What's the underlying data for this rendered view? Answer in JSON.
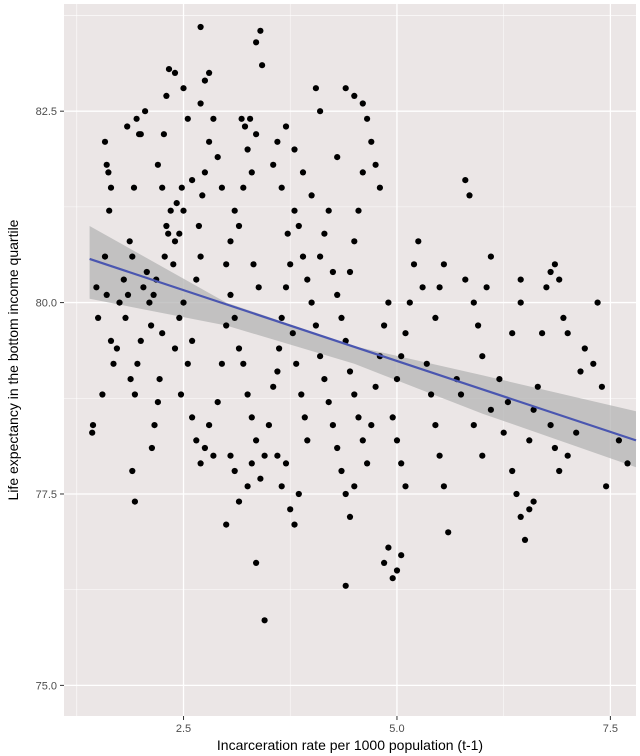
{
  "chart_data": {
    "type": "scatter",
    "title": "",
    "xlabel": "Incarceration rate per 1000 population (t-1)",
    "ylabel": "Life expectancy in the bottom income quartile",
    "xlim": [
      1.1,
      7.8
    ],
    "ylim": [
      74.6,
      83.9
    ],
    "x_ticks": [
      2.5,
      5.0,
      7.5
    ],
    "x_tick_labels": [
      "2.5",
      "5.0",
      "7.5"
    ],
    "y_ticks": [
      75.0,
      77.5,
      80.0,
      82.5
    ],
    "y_tick_labels": [
      "75.0",
      "77.5",
      "80.0",
      "82.5"
    ],
    "grid": true,
    "background": "#ebe6e6",
    "gridline_color": "#ffffff",
    "point_color": "#000000",
    "fit_line_color": "#4a56b0",
    "confidence_band_color": "#b4b4b4",
    "fit_line": {
      "x": [
        1.4,
        7.8
      ],
      "y": [
        80.57,
        78.2
      ]
    },
    "confidence_band": {
      "x": [
        1.4,
        3.0,
        4.5,
        6.0,
        7.8
      ],
      "lower": [
        80.05,
        79.7,
        79.2,
        78.55,
        77.85
      ],
      "upper": [
        81.0,
        80.0,
        79.43,
        79.05,
        78.58
      ]
    },
    "points": [
      [
        1.43,
        78.3
      ],
      [
        1.44,
        78.4
      ],
      [
        1.55,
        78.8
      ],
      [
        1.5,
        79.8
      ],
      [
        1.48,
        80.2
      ],
      [
        1.6,
        80.1
      ],
      [
        1.58,
        80.6
      ],
      [
        1.65,
        79.5
      ],
      [
        1.68,
        79.2
      ],
      [
        1.72,
        79.4
      ],
      [
        1.75,
        80.0
      ],
      [
        1.63,
        81.2
      ],
      [
        1.65,
        81.5
      ],
      [
        1.62,
        81.7
      ],
      [
        1.6,
        81.8
      ],
      [
        1.58,
        82.1
      ],
      [
        1.8,
        80.3
      ],
      [
        1.82,
        79.8
      ],
      [
        1.85,
        80.1
      ],
      [
        1.88,
        79.0
      ],
      [
        1.9,
        80.6
      ],
      [
        1.87,
        80.8
      ],
      [
        1.84,
        82.3
      ],
      [
        1.92,
        81.5
      ],
      [
        1.95,
        82.4
      ],
      [
        1.98,
        82.2
      ],
      [
        2.05,
        82.5
      ],
      [
        2.0,
        82.2
      ],
      [
        1.93,
        78.8
      ],
      [
        1.9,
        77.8
      ],
      [
        1.93,
        77.4
      ],
      [
        1.96,
        79.2
      ],
      [
        2.0,
        79.5
      ],
      [
        2.03,
        80.2
      ],
      [
        2.07,
        80.4
      ],
      [
        2.1,
        80.0
      ],
      [
        2.12,
        79.7
      ],
      [
        2.15,
        80.1
      ],
      [
        2.18,
        80.3
      ],
      [
        2.2,
        78.7
      ],
      [
        2.16,
        78.4
      ],
      [
        2.13,
        78.1
      ],
      [
        2.22,
        79.0
      ],
      [
        2.25,
        79.6
      ],
      [
        2.28,
        80.6
      ],
      [
        2.3,
        81.0
      ],
      [
        2.32,
        80.9
      ],
      [
        2.35,
        81.2
      ],
      [
        2.4,
        80.8
      ],
      [
        2.38,
        80.5
      ],
      [
        2.45,
        80.9
      ],
      [
        2.42,
        81.3
      ],
      [
        2.48,
        81.5
      ],
      [
        2.5,
        81.2
      ],
      [
        2.27,
        82.2
      ],
      [
        2.3,
        82.7
      ],
      [
        2.2,
        81.8
      ],
      [
        2.25,
        81.5
      ],
      [
        2.33,
        83.05
      ],
      [
        2.4,
        83.0
      ],
      [
        2.5,
        82.8
      ],
      [
        2.55,
        82.4
      ],
      [
        2.6,
        81.6
      ],
      [
        2.5,
        80.0
      ],
      [
        2.45,
        79.8
      ],
      [
        2.4,
        79.4
      ],
      [
        2.47,
        78.8
      ],
      [
        2.55,
        79.2
      ],
      [
        2.6,
        79.5
      ],
      [
        2.65,
        80.3
      ],
      [
        2.7,
        80.6
      ],
      [
        2.68,
        81.0
      ],
      [
        2.72,
        81.4
      ],
      [
        2.75,
        81.7
      ],
      [
        2.8,
        82.1
      ],
      [
        2.7,
        82.6
      ],
      [
        2.75,
        82.9
      ],
      [
        2.8,
        83.0
      ],
      [
        2.7,
        83.6
      ],
      [
        2.85,
        82.4
      ],
      [
        2.9,
        81.9
      ],
      [
        2.95,
        81.5
      ],
      [
        2.6,
        78.5
      ],
      [
        2.65,
        78.2
      ],
      [
        2.7,
        77.9
      ],
      [
        2.75,
        78.1
      ],
      [
        2.8,
        78.4
      ],
      [
        2.85,
        78.0
      ],
      [
        2.9,
        78.7
      ],
      [
        2.95,
        79.2
      ],
      [
        3.0,
        79.7
      ],
      [
        3.05,
        80.1
      ],
      [
        3.0,
        80.5
      ],
      [
        3.05,
        80.8
      ],
      [
        3.1,
        81.2
      ],
      [
        3.15,
        81.0
      ],
      [
        3.2,
        81.5
      ],
      [
        3.25,
        82.0
      ],
      [
        3.18,
        82.4
      ],
      [
        3.22,
        82.3
      ],
      [
        3.28,
        82.4
      ],
      [
        3.35,
        83.4
      ],
      [
        3.4,
        83.55
      ],
      [
        3.42,
        83.1
      ],
      [
        3.35,
        82.2
      ],
      [
        3.3,
        81.7
      ],
      [
        3.32,
        80.5
      ],
      [
        3.38,
        80.2
      ],
      [
        3.1,
        79.8
      ],
      [
        3.15,
        79.4
      ],
      [
        3.2,
        79.2
      ],
      [
        3.25,
        78.8
      ],
      [
        3.3,
        78.5
      ],
      [
        3.35,
        78.2
      ],
      [
        3.05,
        78.0
      ],
      [
        3.1,
        77.8
      ],
      [
        3.0,
        77.1
      ],
      [
        3.15,
        77.4
      ],
      [
        3.25,
        77.6
      ],
      [
        3.3,
        77.9
      ],
      [
        3.35,
        76.6
      ],
      [
        3.45,
        75.85
      ],
      [
        3.4,
        77.7
      ],
      [
        3.45,
        78.0
      ],
      [
        3.5,
        78.4
      ],
      [
        3.55,
        78.9
      ],
      [
        3.6,
        79.1
      ],
      [
        3.62,
        79.4
      ],
      [
        3.65,
        79.8
      ],
      [
        3.7,
        80.2
      ],
      [
        3.75,
        80.5
      ],
      [
        3.72,
        80.9
      ],
      [
        3.8,
        81.2
      ],
      [
        3.85,
        81.0
      ],
      [
        3.9,
        80.6
      ],
      [
        3.95,
        80.3
      ],
      [
        3.78,
        79.6
      ],
      [
        3.82,
        79.2
      ],
      [
        3.88,
        78.8
      ],
      [
        3.92,
        78.5
      ],
      [
        3.95,
        78.2
      ],
      [
        3.6,
        78.0
      ],
      [
        3.65,
        77.6
      ],
      [
        3.7,
        77.9
      ],
      [
        3.75,
        77.3
      ],
      [
        3.8,
        77.1
      ],
      [
        3.85,
        77.5
      ],
      [
        3.55,
        81.8
      ],
      [
        3.6,
        82.1
      ],
      [
        3.65,
        81.5
      ],
      [
        3.7,
        82.3
      ],
      [
        3.8,
        82.0
      ],
      [
        3.9,
        81.7
      ],
      [
        4.0,
        81.4
      ],
      [
        4.0,
        80.0
      ],
      [
        4.05,
        79.7
      ],
      [
        4.1,
        79.3
      ],
      [
        4.15,
        79.0
      ],
      [
        4.2,
        78.7
      ],
      [
        4.25,
        78.4
      ],
      [
        4.3,
        78.1
      ],
      [
        4.35,
        77.8
      ],
      [
        4.4,
        77.5
      ],
      [
        4.45,
        77.2
      ],
      [
        4.5,
        77.6
      ],
      [
        4.1,
        80.6
      ],
      [
        4.15,
        80.9
      ],
      [
        4.2,
        81.2
      ],
      [
        4.25,
        80.4
      ],
      [
        4.3,
        80.1
      ],
      [
        4.35,
        79.8
      ],
      [
        4.4,
        79.5
      ],
      [
        4.45,
        79.1
      ],
      [
        4.5,
        78.8
      ],
      [
        4.55,
        78.5
      ],
      [
        4.6,
        78.2
      ],
      [
        4.65,
        77.9
      ],
      [
        4.7,
        78.4
      ],
      [
        4.75,
        78.9
      ],
      [
        4.8,
        79.3
      ],
      [
        4.85,
        79.7
      ],
      [
        4.9,
        80.0
      ],
      [
        4.4,
        82.8
      ],
      [
        4.5,
        82.7
      ],
      [
        4.6,
        82.6
      ],
      [
        4.65,
        82.4
      ],
      [
        4.7,
        82.1
      ],
      [
        4.75,
        81.8
      ],
      [
        4.8,
        81.5
      ],
      [
        4.6,
        81.7
      ],
      [
        4.55,
        81.2
      ],
      [
        4.5,
        80.8
      ],
      [
        4.45,
        80.4
      ],
      [
        4.05,
        82.8
      ],
      [
        4.1,
        82.5
      ],
      [
        4.3,
        81.9
      ],
      [
        4.95,
        78.5
      ],
      [
        5.0,
        78.2
      ],
      [
        5.05,
        77.9
      ],
      [
        5.1,
        77.6
      ],
      [
        5.0,
        76.5
      ],
      [
        5.05,
        76.7
      ],
      [
        4.95,
        76.4
      ],
      [
        4.4,
        76.3
      ],
      [
        4.85,
        76.6
      ],
      [
        4.9,
        76.8
      ],
      [
        5.0,
        79.0
      ],
      [
        5.05,
        79.3
      ],
      [
        5.1,
        79.6
      ],
      [
        5.15,
        80.0
      ],
      [
        5.2,
        80.5
      ],
      [
        5.25,
        80.8
      ],
      [
        5.3,
        80.2
      ],
      [
        5.35,
        79.2
      ],
      [
        5.4,
        78.8
      ],
      [
        5.45,
        78.4
      ],
      [
        5.5,
        78.0
      ],
      [
        5.55,
        77.6
      ],
      [
        5.6,
        77.0
      ],
      [
        5.45,
        79.8
      ],
      [
        5.5,
        80.2
      ],
      [
        5.55,
        80.5
      ],
      [
        5.8,
        81.6
      ],
      [
        5.85,
        81.4
      ],
      [
        5.8,
        80.3
      ],
      [
        5.9,
        80.0
      ],
      [
        5.95,
        79.7
      ],
      [
        6.0,
        79.3
      ],
      [
        6.05,
        80.2
      ],
      [
        6.1,
        80.6
      ],
      [
        5.7,
        79.0
      ],
      [
        5.75,
        78.8
      ],
      [
        5.9,
        78.4
      ],
      [
        6.0,
        78.0
      ],
      [
        6.1,
        78.6
      ],
      [
        6.2,
        79.0
      ],
      [
        6.3,
        78.7
      ],
      [
        6.35,
        79.6
      ],
      [
        6.45,
        80.3
      ],
      [
        6.45,
        80.0
      ],
      [
        6.4,
        77.5
      ],
      [
        6.45,
        77.2
      ],
      [
        6.5,
        76.9
      ],
      [
        6.55,
        77.3
      ],
      [
        6.6,
        77.4
      ],
      [
        6.55,
        78.2
      ],
      [
        6.6,
        78.6
      ],
      [
        6.65,
        78.9
      ],
      [
        6.7,
        79.6
      ],
      [
        6.75,
        80.2
      ],
      [
        6.8,
        80.4
      ],
      [
        6.85,
        80.5
      ],
      [
        6.9,
        80.3
      ],
      [
        6.95,
        79.8
      ],
      [
        7.0,
        79.6
      ],
      [
        6.8,
        78.4
      ],
      [
        6.85,
        78.1
      ],
      [
        6.9,
        77.8
      ],
      [
        7.0,
        78.0
      ],
      [
        7.1,
        78.3
      ],
      [
        7.15,
        79.1
      ],
      [
        7.2,
        79.4
      ],
      [
        7.3,
        79.2
      ],
      [
        7.35,
        80.0
      ],
      [
        7.4,
        78.9
      ],
      [
        7.45,
        77.6
      ],
      [
        7.6,
        78.2
      ],
      [
        7.7,
        77.9
      ],
      [
        6.25,
        78.3
      ],
      [
        6.35,
        77.8
      ]
    ]
  }
}
